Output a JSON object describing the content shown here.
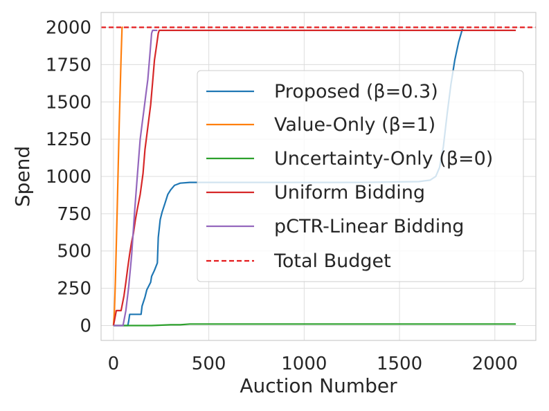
{
  "chart_data": {
    "type": "line",
    "xlabel": "Auction Number",
    "ylabel": "Spend",
    "xlim": [
      -65,
      2215
    ],
    "ylim": [
      -100,
      2100
    ],
    "xticks": [
      0,
      500,
      1000,
      1500,
      2000
    ],
    "yticks": [
      0,
      250,
      500,
      750,
      1000,
      1250,
      1500,
      1750,
      2000
    ],
    "xtick_labels": [
      "0",
      "500",
      "1000",
      "1500",
      "2000"
    ],
    "ytick_labels": [
      "0",
      "250",
      "500",
      "750",
      "1000",
      "1250",
      "1500",
      "1750",
      "2000"
    ],
    "grid": true,
    "legend_position": "center-right",
    "series": [
      {
        "name": "Proposed (β=0.3)",
        "color": "#1f77b4",
        "style": "solid",
        "x": [
          0,
          75,
          80,
          85,
          95,
          110,
          145,
          150,
          165,
          175,
          195,
          200,
          215,
          230,
          235,
          245,
          255,
          270,
          285,
          300,
          320,
          350,
          400,
          500,
          700,
          1000,
          1300,
          1600,
          1660,
          1690,
          1710,
          1730,
          1750,
          1770,
          1790,
          1810,
          1830
        ],
        "values": [
          0,
          0,
          30,
          75,
          75,
          75,
          75,
          130,
          190,
          240,
          290,
          330,
          370,
          420,
          590,
          710,
          760,
          820,
          880,
          910,
          940,
          955,
          960,
          960,
          960,
          960,
          960,
          965,
          975,
          1000,
          1060,
          1200,
          1420,
          1620,
          1780,
          1900,
          1990
        ]
      },
      {
        "name": "Value-Only (β=1)",
        "color": "#ff7f0e",
        "style": "solid",
        "x": [
          0,
          5,
          10,
          20,
          30,
          40,
          45,
          50
        ],
        "values": [
          0,
          100,
          300,
          800,
          1350,
          1800,
          2000,
          2000
        ]
      },
      {
        "name": "Uncertainty-Only (β=0)",
        "color": "#2ca02c",
        "style": "solid",
        "x": [
          0,
          200,
          300,
          350,
          400,
          500,
          1000,
          1500,
          2000,
          2110
        ],
        "values": [
          0,
          0,
          5,
          5,
          10,
          10,
          10,
          10,
          10,
          10
        ]
      },
      {
        "name": "Uniform Bidding",
        "color": "#d62728",
        "style": "solid",
        "x": [
          0,
          15,
          25,
          40,
          55,
          65,
          75,
          85,
          95,
          105,
          115,
          125,
          140,
          155,
          165,
          180,
          195,
          205,
          215,
          225,
          235,
          240,
          245,
          2110
        ],
        "values": [
          0,
          100,
          100,
          100,
          200,
          290,
          390,
          480,
          560,
          620,
          710,
          780,
          880,
          1020,
          1180,
          1330,
          1480,
          1630,
          1780,
          1870,
          1960,
          1980,
          1980,
          1980
        ]
      },
      {
        "name": "pCTR-Linear Bidding",
        "color": "#9467bd",
        "style": "solid",
        "x": [
          0,
          30,
          50,
          65,
          80,
          95,
          110,
          125,
          140,
          150,
          160,
          170,
          180,
          190,
          200,
          205,
          210,
          230
        ],
        "values": [
          0,
          0,
          0,
          100,
          260,
          470,
          750,
          1000,
          1250,
          1350,
          1450,
          1550,
          1650,
          1800,
          1960,
          1980,
          1980,
          1980
        ]
      },
      {
        "name": "Total Budget",
        "color": "#e41a1c",
        "style": "dashed",
        "x": [
          -65,
          2215
        ],
        "values": [
          2000,
          2000
        ]
      }
    ]
  }
}
